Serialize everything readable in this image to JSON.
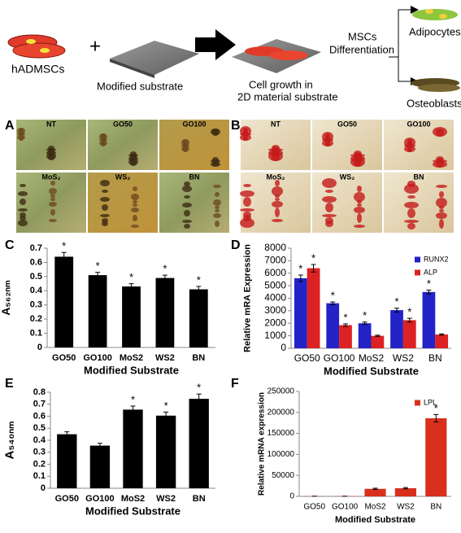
{
  "schematic": {
    "cells": "hADMSCs",
    "plus": "+",
    "substrate": "Modified substrate",
    "growth": [
      "Cell growth in",
      "2D material substrate"
    ],
    "differentiation": [
      "MSCs",
      "Differentiation"
    ],
    "adipocytes": "Adipocytes",
    "osteoblasts": "Osteoblasts"
  },
  "micrographs": [
    {
      "panel_label": "A",
      "labels": [
        "NT",
        "GO50",
        "GO100",
        "MoS₂",
        "WS₂",
        "BN"
      ]
    },
    {
      "panel_label": "B",
      "labels": [
        "NT",
        "GO50",
        "GO100",
        "MoS₂",
        "WS₂",
        "BN"
      ]
    }
  ],
  "chart_data": [
    {
      "type": "bar",
      "panel_label": "C",
      "y_label": "A₅₆₂ₙₘ",
      "x_label": "Modified Substrate",
      "categories": [
        "GO50",
        "GO100",
        "MoS2",
        "WS2",
        "BN"
      ],
      "series": [
        {
          "color": "#000000",
          "values": [
            0.64,
            0.51,
            0.43,
            0.49,
            0.41
          ],
          "errors": [
            0.03,
            0.02,
            0.02,
            0.02,
            0.02
          ],
          "annotations": [
            "*",
            "*",
            "*",
            "*",
            "*"
          ]
        }
      ],
      "ylim": [
        0,
        0.7
      ],
      "yticks": [
        0,
        0.1,
        0.2,
        0.3,
        0.4,
        0.5,
        0.6,
        0.7
      ]
    },
    {
      "type": "bar",
      "panel_label": "D",
      "y_label": "Relative mRA Expression",
      "x_label": "Modified Substrate",
      "categories": [
        "GO50",
        "GO100",
        "MoS2",
        "WS2",
        "BN"
      ],
      "series": [
        {
          "name": "RUNX2",
          "color": "#2323c8",
          "values": [
            5600,
            3600,
            2000,
            3050,
            4500
          ],
          "errors": [
            250,
            100,
            100,
            150,
            150
          ],
          "annotations": [
            "*",
            "*",
            "*",
            "*",
            "*"
          ]
        },
        {
          "name": "ALP",
          "color": "#dc2222",
          "values": [
            6400,
            1850,
            1000,
            2250,
            1100
          ],
          "errors": [
            300,
            100,
            50,
            150,
            50
          ],
          "annotations": [
            "*",
            "*",
            null,
            "*",
            null
          ]
        }
      ],
      "ylim": [
        0,
        8000
      ],
      "yticks": [
        0,
        1000,
        2000,
        3000,
        4000,
        5000,
        6000,
        7000,
        8000
      ],
      "legend": "upper right"
    },
    {
      "type": "bar",
      "panel_label": "E",
      "y_label": "A₅₄₀ₙₘ",
      "x_label": "Modified Substrate",
      "categories": [
        "GO50",
        "GO100",
        "MoS2",
        "WS2",
        "BN"
      ],
      "series": [
        {
          "color": "#000000",
          "values": [
            0.45,
            0.355,
            0.655,
            0.605,
            0.745
          ],
          "errors": [
            0.02,
            0.02,
            0.03,
            0.03,
            0.04
          ],
          "annotations": [
            null,
            null,
            "*",
            "*",
            "*"
          ]
        }
      ],
      "ylim": [
        0,
        0.8
      ],
      "yticks": [
        0,
        0.1,
        0.2,
        0.3,
        0.4,
        0.5,
        0.6,
        0.7,
        0.8
      ]
    },
    {
      "type": "bar",
      "panel_label": "F",
      "y_label": "Relative mRNA expression",
      "x_label": "Modified Substrate",
      "categories": [
        "GO50",
        "GO100",
        "MoS2",
        "WS2",
        "BN"
      ],
      "series": [
        {
          "name": "LPL",
          "color": "#d9301e",
          "values": [
            500,
            500,
            18000,
            19500,
            186000
          ],
          "errors": [
            0,
            0,
            1500,
            1500,
            9000
          ],
          "annotations": [
            null,
            null,
            null,
            null,
            "*"
          ]
        }
      ],
      "ylim": [
        0,
        250000
      ],
      "yticks": [
        0,
        50000,
        100000,
        150000,
        200000,
        250000
      ],
      "legend": "upper right"
    }
  ]
}
